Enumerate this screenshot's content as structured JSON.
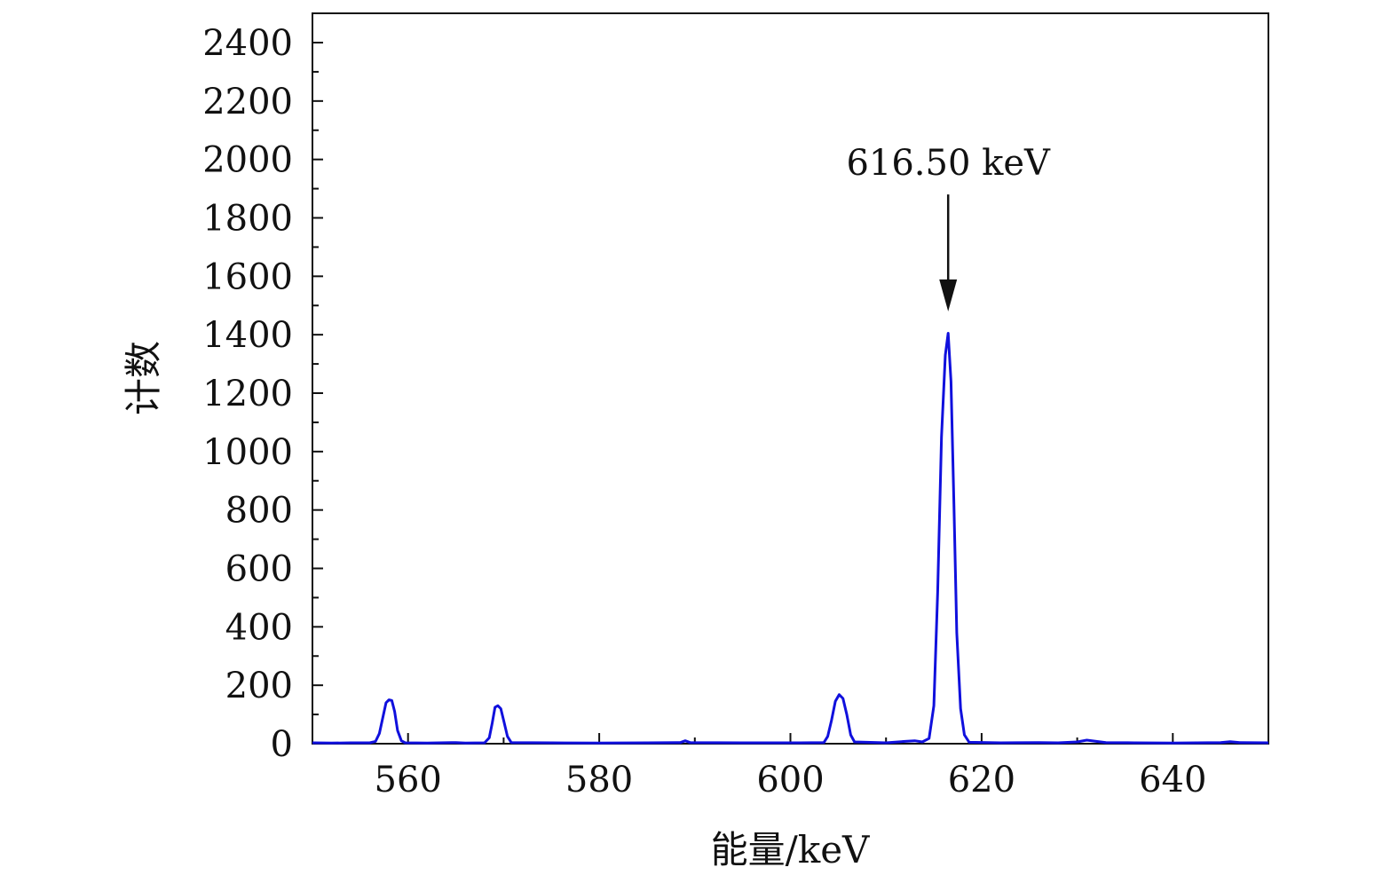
{
  "chart_data": {
    "type": "line",
    "title": "",
    "xlabel": "能量/keV",
    "ylabel": "计数",
    "xlim": [
      550,
      650
    ],
    "ylim": [
      0,
      2500
    ],
    "x_ticks": [
      560,
      580,
      600,
      620,
      640
    ],
    "x_minor_step": 10,
    "y_ticks": [
      0,
      200,
      400,
      600,
      800,
      1000,
      1200,
      1400,
      1600,
      1800,
      2000,
      2200,
      2400
    ],
    "y_minor_step": 100,
    "grid": false,
    "legend": "none",
    "series": [
      {
        "color": "#1010dd",
        "points": [
          [
            550,
            3
          ],
          [
            552,
            2
          ],
          [
            554,
            3
          ],
          [
            556,
            3
          ],
          [
            556.6,
            8
          ],
          [
            557.0,
            35
          ],
          [
            557.4,
            95
          ],
          [
            557.7,
            140
          ],
          [
            558.0,
            150
          ],
          [
            558.3,
            148
          ],
          [
            558.6,
            110
          ],
          [
            558.9,
            45
          ],
          [
            559.3,
            10
          ],
          [
            559.7,
            3
          ],
          [
            562,
            2
          ],
          [
            565,
            4
          ],
          [
            566,
            2
          ],
          [
            568,
            3
          ],
          [
            568.5,
            20
          ],
          [
            568.8,
            70
          ],
          [
            569.1,
            125
          ],
          [
            569.4,
            130
          ],
          [
            569.7,
            120
          ],
          [
            570.0,
            80
          ],
          [
            570.4,
            25
          ],
          [
            570.8,
            4
          ],
          [
            575,
            3
          ],
          [
            580,
            2
          ],
          [
            585,
            3
          ],
          [
            588.5,
            4
          ],
          [
            589,
            10
          ],
          [
            589.5,
            4
          ],
          [
            595,
            3
          ],
          [
            601,
            3
          ],
          [
            603.5,
            4
          ],
          [
            603.9,
            25
          ],
          [
            604.3,
            80
          ],
          [
            604.7,
            145
          ],
          [
            605.1,
            168
          ],
          [
            605.5,
            155
          ],
          [
            605.9,
            100
          ],
          [
            606.3,
            30
          ],
          [
            606.7,
            6
          ],
          [
            610,
            3
          ],
          [
            612,
            8
          ],
          [
            613,
            10
          ],
          [
            613.8,
            6
          ],
          [
            614.5,
            18
          ],
          [
            615.0,
            130
          ],
          [
            615.4,
            520
          ],
          [
            615.8,
            1050
          ],
          [
            616.2,
            1330
          ],
          [
            616.5,
            1405
          ],
          [
            616.8,
            1240
          ],
          [
            617.1,
            820
          ],
          [
            617.4,
            380
          ],
          [
            617.8,
            120
          ],
          [
            618.2,
            30
          ],
          [
            618.7,
            5
          ],
          [
            622,
            3
          ],
          [
            626,
            4
          ],
          [
            628,
            3
          ],
          [
            630,
            6
          ],
          [
            631,
            12
          ],
          [
            632,
            8
          ],
          [
            633,
            4
          ],
          [
            636,
            3
          ],
          [
            640,
            2
          ],
          [
            645,
            4
          ],
          [
            646,
            7
          ],
          [
            647,
            4
          ],
          [
            650,
            3
          ]
        ]
      }
    ],
    "annotations": [
      {
        "text": "616.50 keV",
        "x": 616.5,
        "arrow_to_y": 1480,
        "arrow_from_y": 1880,
        "text_y": 1990
      }
    ]
  }
}
